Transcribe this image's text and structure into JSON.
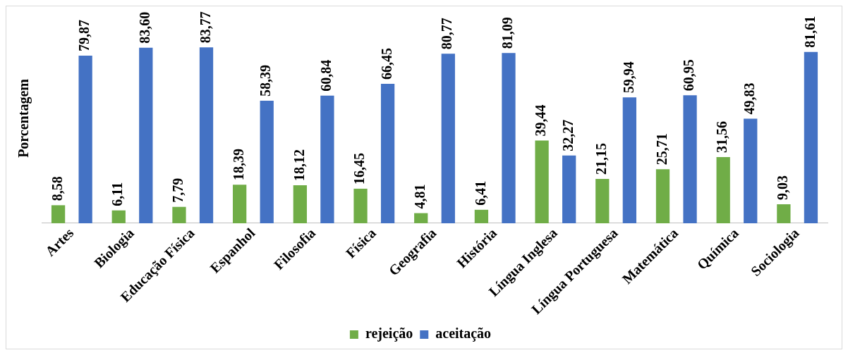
{
  "chart_data": {
    "type": "bar",
    "ylabel": "Porcentagem",
    "categories": [
      "Artes",
      "Biologia",
      "Educação Física",
      "Espanhol",
      "Filosofia",
      "Física",
      "Geografia",
      "História",
      "Língua Inglesa",
      "Língua Portuguesa",
      "Matemática",
      "Química",
      "Sociologia"
    ],
    "series": [
      {
        "name": "rejeição",
        "color": "#70ad47",
        "values": [
          8.58,
          6.11,
          7.79,
          18.39,
          18.12,
          16.45,
          4.81,
          6.41,
          39.44,
          21.15,
          25.71,
          31.56,
          9.03
        ],
        "value_labels": [
          "8,58",
          "6,11",
          "7,79",
          "18,39",
          "18,12",
          "16,45",
          "4,81",
          "6,41",
          "39,44",
          "21,15",
          "25,71",
          "31,56",
          "9,03"
        ]
      },
      {
        "name": "aceitação",
        "color": "#4472c4",
        "values": [
          79.87,
          83.6,
          83.77,
          58.39,
          60.84,
          66.45,
          80.77,
          81.09,
          32.27,
          59.94,
          60.95,
          49.83,
          81.61
        ],
        "value_labels": [
          "79,87",
          "83,60",
          "83,77",
          "58,39",
          "60,84",
          "66,45",
          "80,77",
          "81,09",
          "32,27",
          "59,94",
          "60,95",
          "49,83",
          "81,61"
        ]
      }
    ],
    "legend": "bottom",
    "grid": false
  }
}
